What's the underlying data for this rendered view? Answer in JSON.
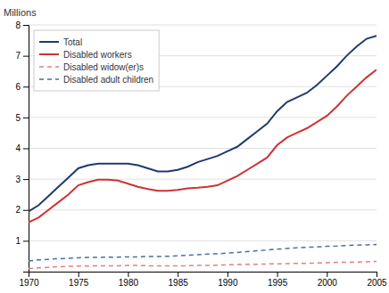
{
  "chart_data": {
    "type": "line",
    "y_label": "Millions",
    "x": [
      1970,
      1971,
      1972,
      1973,
      1974,
      1975,
      1976,
      1977,
      1978,
      1979,
      1980,
      1981,
      1982,
      1983,
      1984,
      1985,
      1986,
      1987,
      1988,
      1989,
      1990,
      1991,
      1992,
      1993,
      1994,
      1995,
      1996,
      1997,
      1998,
      1999,
      2000,
      2001,
      2002,
      2003,
      2004,
      2005
    ],
    "series": [
      {
        "name": "Total",
        "color": "#1f3a6e",
        "line_style": "solid",
        "values": [
          1.95,
          2.15,
          2.45,
          2.75,
          3.05,
          3.35,
          3.45,
          3.5,
          3.5,
          3.5,
          3.5,
          3.45,
          3.35,
          3.25,
          3.25,
          3.3,
          3.4,
          3.55,
          3.65,
          3.75,
          3.9,
          4.05,
          4.3,
          4.55,
          4.8,
          5.2,
          5.5,
          5.65,
          5.8,
          6.05,
          6.35,
          6.65,
          7.0,
          7.3,
          7.55,
          7.65
        ]
      },
      {
        "name": "Disabled workers",
        "color": "#cc3333",
        "line_style": "solid",
        "values": [
          1.6,
          1.75,
          2.0,
          2.25,
          2.5,
          2.8,
          2.9,
          2.98,
          2.98,
          2.95,
          2.85,
          2.75,
          2.68,
          2.62,
          2.62,
          2.65,
          2.7,
          2.72,
          2.75,
          2.8,
          2.95,
          3.1,
          3.3,
          3.5,
          3.7,
          4.1,
          4.35,
          4.5,
          4.65,
          4.85,
          5.05,
          5.35,
          5.7,
          6.0,
          6.3,
          6.55
        ]
      },
      {
        "name": "Disabled widow(er)s",
        "color": "#e08080",
        "line_style": "dashed",
        "values": [
          0.1,
          0.12,
          0.14,
          0.16,
          0.17,
          0.18,
          0.18,
          0.19,
          0.19,
          0.19,
          0.2,
          0.2,
          0.19,
          0.19,
          0.19,
          0.19,
          0.19,
          0.2,
          0.2,
          0.21,
          0.22,
          0.23,
          0.24,
          0.24,
          0.25,
          0.25,
          0.26,
          0.27,
          0.27,
          0.28,
          0.29,
          0.3,
          0.3,
          0.31,
          0.32,
          0.33
        ]
      },
      {
        "name": "Disabled adult children",
        "color": "#4a6fa0",
        "line_style": "dashed",
        "values": [
          0.35,
          0.38,
          0.4,
          0.42,
          0.43,
          0.45,
          0.46,
          0.46,
          0.47,
          0.47,
          0.48,
          0.48,
          0.49,
          0.49,
          0.5,
          0.51,
          0.53,
          0.55,
          0.57,
          0.58,
          0.6,
          0.62,
          0.65,
          0.68,
          0.7,
          0.73,
          0.75,
          0.77,
          0.79,
          0.8,
          0.82,
          0.83,
          0.85,
          0.86,
          0.87,
          0.88
        ]
      }
    ],
    "xlim": [
      1970,
      2005
    ],
    "xticks": [
      1970,
      1975,
      1980,
      1985,
      1990,
      1995,
      2000,
      2005
    ],
    "ylim": [
      0,
      8
    ],
    "yticks": [
      1,
      2,
      3,
      4,
      5,
      6,
      7,
      8
    ],
    "grid": true,
    "legend": "upper left"
  }
}
